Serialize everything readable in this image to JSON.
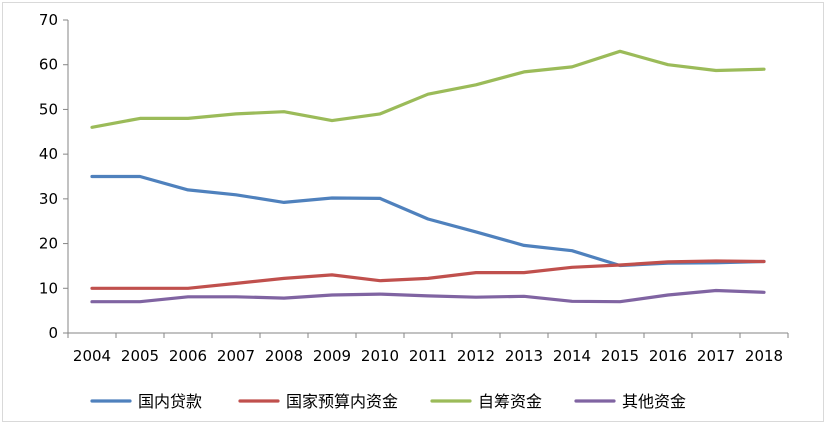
{
  "chart_data": {
    "type": "line",
    "title": "",
    "xlabel": "",
    "ylabel": "",
    "ylim": [
      0,
      70
    ],
    "yticks": [
      0,
      10,
      20,
      30,
      40,
      50,
      60,
      70
    ],
    "grid": false,
    "legend_position": "bottom",
    "categories": [
      "2004",
      "2005",
      "2006",
      "2007",
      "2008",
      "2009",
      "2010",
      "2011",
      "2012",
      "2013",
      "2014",
      "2015",
      "2016",
      "2017",
      "2018"
    ],
    "series": [
      {
        "name": "国内贷款",
        "color": "#4f81bd",
        "values": [
          35.0,
          35.0,
          32.0,
          30.9,
          29.2,
          30.2,
          30.1,
          25.5,
          22.6,
          19.6,
          18.4,
          15.1,
          15.6,
          15.7,
          16.0
        ]
      },
      {
        "name": "国家预算内资金",
        "color": "#c0504d",
        "values": [
          10.0,
          10.0,
          10.0,
          11.1,
          12.2,
          13.0,
          11.7,
          12.2,
          13.5,
          13.5,
          14.7,
          15.2,
          15.9,
          16.1,
          16.0
        ]
      },
      {
        "name": "自筹资金",
        "color": "#9bbb59",
        "values": [
          46.0,
          48.0,
          48.0,
          49.0,
          49.5,
          47.5,
          49.0,
          53.4,
          55.5,
          58.4,
          59.5,
          63.0,
          60.0,
          58.7,
          59.0
        ]
      },
      {
        "name": "其他资金",
        "color": "#8064a2",
        "values": [
          7.0,
          7.0,
          8.1,
          8.1,
          7.8,
          8.5,
          8.7,
          8.3,
          8.0,
          8.2,
          7.1,
          7.0,
          8.5,
          9.5,
          9.1
        ]
      }
    ]
  }
}
